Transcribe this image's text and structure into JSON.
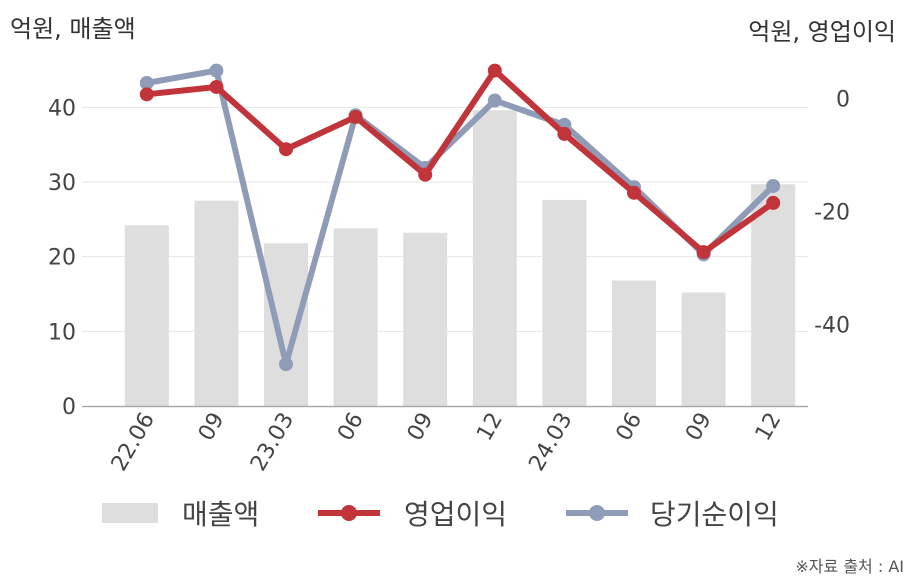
{
  "chart_data": {
    "type": "bar",
    "categories": [
      "22.06",
      "09",
      "23.03",
      "06",
      "09",
      "12",
      "24.03",
      "06",
      "09",
      "12"
    ],
    "left_unit": "억원, 매출액",
    "right_unit": "억원, 영업이익",
    "left_ylim": [
      0,
      45
    ],
    "left_ticks": [
      "0",
      "10",
      "20",
      "30",
      "40"
    ],
    "right_ylim": [
      -54.4,
      5
    ],
    "right_ticks": [
      "0",
      "-20",
      "-40"
    ],
    "grid": true,
    "legend_position": "bottom",
    "series": [
      {
        "name": "매출액",
        "type": "bar",
        "axis": "left",
        "color": "#dedede",
        "values": [
          24.2,
          27.5,
          21.8,
          23.8,
          23.2,
          39.6,
          27.6,
          16.8,
          15.2,
          29.7
        ]
      },
      {
        "name": "영업이익",
        "type": "line",
        "axis": "right",
        "color": "#c0343a",
        "values": [
          0.7,
          2.0,
          -9.0,
          -3.3,
          -13.5,
          4.9,
          -6.3,
          -16.7,
          -27.2,
          -18.5
        ]
      },
      {
        "name": "당기순이익",
        "type": "line",
        "axis": "right",
        "color": "#8f9cb8",
        "values": [
          2.7,
          4.9,
          -47.0,
          -3.0,
          -12.3,
          -0.4,
          -4.7,
          -15.7,
          -27.6,
          -15.5
        ]
      }
    ],
    "source": "※자료 출처 : AI"
  }
}
